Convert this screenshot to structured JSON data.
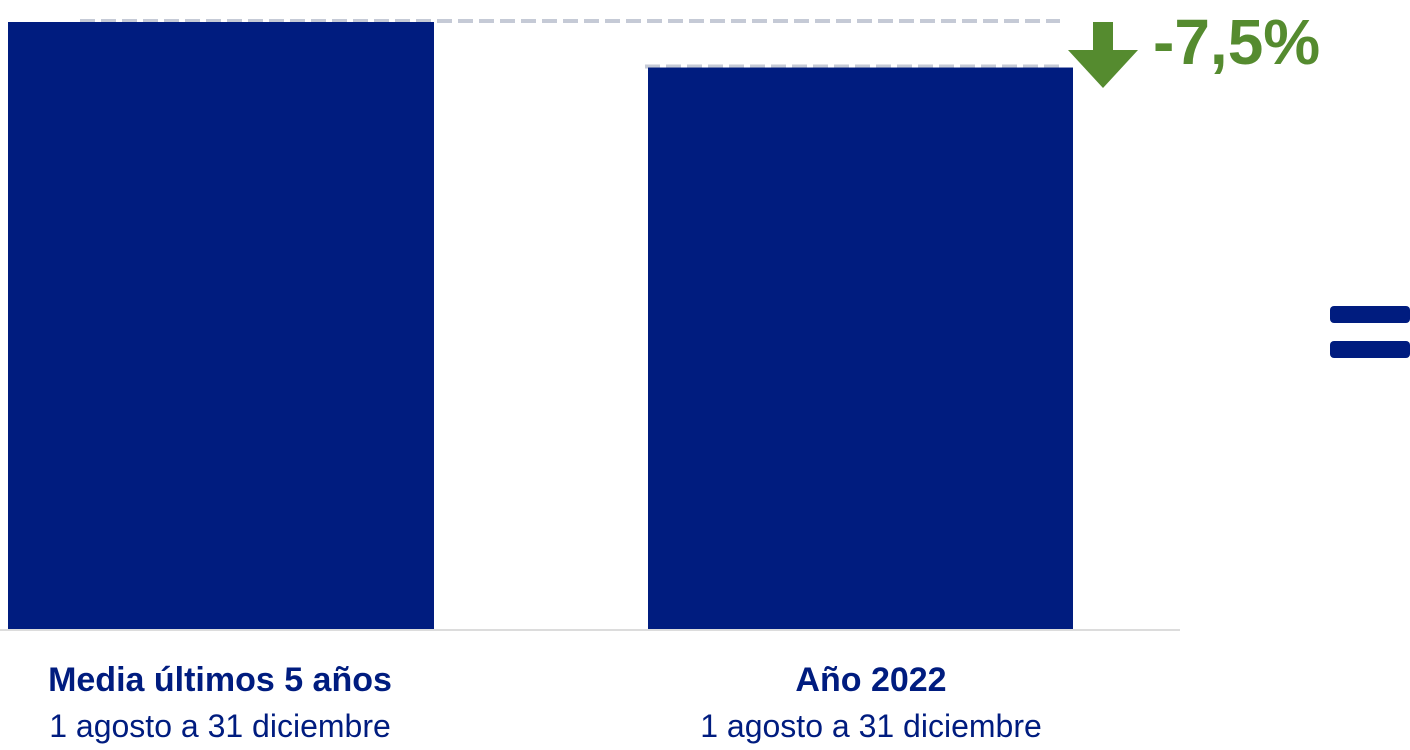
{
  "chart_data": {
    "type": "bar",
    "categories": [
      "Media últimos 5 años",
      "Año 2022"
    ],
    "category_subtitles": [
      "1 agosto a 31 diciembre",
      "1 agosto a 31 diciembre"
    ],
    "values": [
      100,
      92.5
    ],
    "ylim": [
      0,
      100
    ],
    "change_label": "-7,5%",
    "change_direction": "down",
    "grid": false,
    "colors": {
      "bar": "#001C7F",
      "category_text": "#001C7F",
      "change_text": "#558B2F",
      "arrow": "#558B2F",
      "reference_line": "#C5CAD6",
      "baseline": "#DCDCDC",
      "equals_icon": "#001C7F"
    },
    "icons": [
      "arrow-down-icon",
      "equals-icon"
    ]
  }
}
